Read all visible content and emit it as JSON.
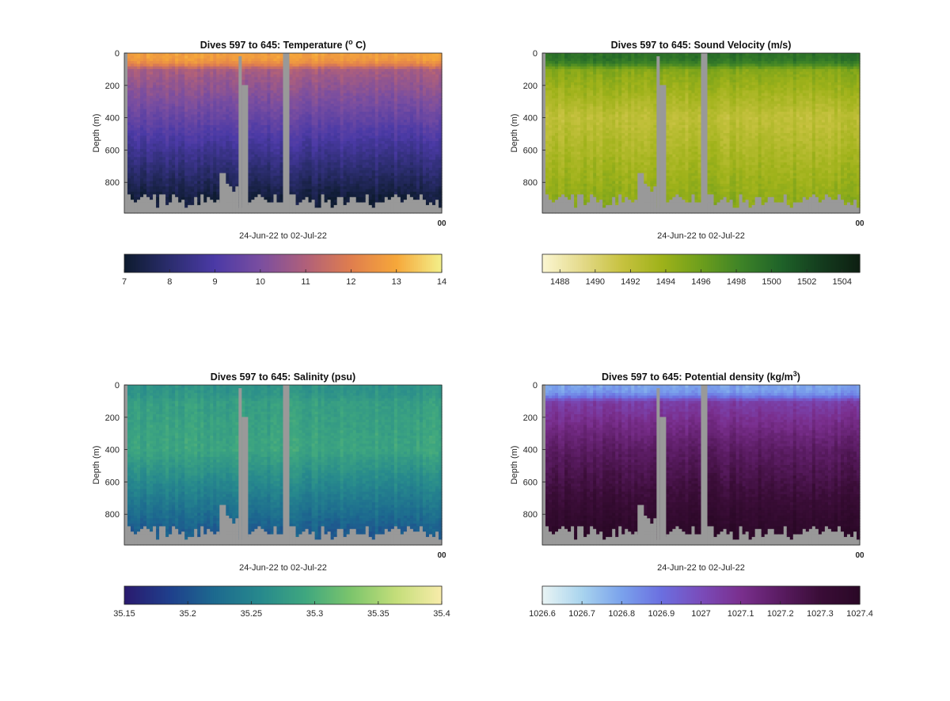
{
  "figure": {
    "date_range_label": "24-Jun-22 to 02-Jul-22",
    "ylabel": "Depth (m)",
    "x_tick_overlap_label": "00"
  },
  "chart_data": [
    {
      "type": "heatmap",
      "title": "Dives 597 to 645: Temperature (° C)",
      "title_prefix": "Dives 597 to 645: Temperature (",
      "title_sup": "o",
      "title_suffix": " C)",
      "xlabel": "24-Jun-22 to 02-Jul-22",
      "ylabel": "Depth (m)",
      "y_ticks": [
        0,
        200,
        400,
        600,
        800
      ],
      "ylim": [
        0,
        990
      ],
      "y_reversed": true,
      "colorbar": {
        "min": 7,
        "max": 14,
        "ticks": [
          7,
          8,
          9,
          10,
          11,
          12,
          13,
          14
        ],
        "tick_labels": [
          "7",
          "8",
          "9",
          "10",
          "11",
          "12",
          "13",
          "14"
        ],
        "colormap": [
          "#0d1b2e",
          "#2b2d6e",
          "#4b3aa6",
          "#7a4ea0",
          "#b0607a",
          "#e07e4e",
          "#f6a73a",
          "#f3f08a"
        ]
      },
      "profile": {
        "surface_value": 12.8,
        "surface_depth": 100,
        "mid_value": 9.6,
        "mid_depth": 400,
        "deep_value": 7.2,
        "deep_depth": 900
      }
    },
    {
      "type": "heatmap",
      "title": "Dives 597 to 645: Sound Velocity (m/s)",
      "title_prefix": "Dives 597 to 645: Sound Velocity (m/s)",
      "title_sup": "",
      "title_suffix": "",
      "xlabel": "24-Jun-22 to 02-Jul-22",
      "ylabel": "Depth (m)",
      "y_ticks": [
        0,
        200,
        400,
        600,
        800
      ],
      "ylim": [
        0,
        990
      ],
      "y_reversed": true,
      "colorbar": {
        "min": 1487,
        "max": 1505,
        "ticks": [
          1488,
          1490,
          1492,
          1494,
          1496,
          1498,
          1500,
          1502,
          1504
        ],
        "tick_labels": [
          "1488",
          "1490",
          "1492",
          "1494",
          "1496",
          "1498",
          "1500",
          "1502",
          "1504"
        ],
        "colormap": [
          "#fbf6d2",
          "#e4da8a",
          "#c7c240",
          "#9fb21a",
          "#6d9e1c",
          "#3e8327",
          "#1f6329",
          "#143d1e",
          "#0e1f12"
        ]
      },
      "profile": {
        "surface_value": 1499.5,
        "surface_depth": 100,
        "mid_value": 1492.0,
        "mid_depth": 400,
        "deep_value": 1494.5,
        "deep_depth": 900
      }
    },
    {
      "type": "heatmap",
      "title": "Dives 597 to 645: Salinity (psu)",
      "title_prefix": "Dives 597 to 645: Salinity (psu)",
      "title_sup": "",
      "title_suffix": "",
      "xlabel": "24-Jun-22 to 02-Jul-22",
      "ylabel": "Depth (m)",
      "y_ticks": [
        0,
        200,
        400,
        600,
        800
      ],
      "ylim": [
        0,
        990
      ],
      "y_reversed": true,
      "colorbar": {
        "min": 35.15,
        "max": 35.4,
        "ticks": [
          35.15,
          35.2,
          35.25,
          35.3,
          35.35,
          35.4
        ],
        "tick_labels": [
          "35.15",
          "35.2",
          "35.25",
          "35.3",
          "35.35",
          "35.4"
        ],
        "colormap": [
          "#2a1a6e",
          "#1f3f8c",
          "#1d6a8f",
          "#27898d",
          "#3fa77f",
          "#7cc56c",
          "#c4de7a",
          "#f8ecaa"
        ]
      },
      "profile": {
        "surface_value": 35.27,
        "surface_depth": 100,
        "mid_value": 35.29,
        "mid_depth": 400,
        "deep_value": 35.21,
        "deep_depth": 900
      }
    },
    {
      "type": "heatmap",
      "title": "Dives 597 to 645: Potential density (kg/m³)",
      "title_prefix": "Dives 597 to 645: Potential density (kg/m",
      "title_sup": "3",
      "title_suffix": ")",
      "xlabel": "24-Jun-22 to 02-Jul-22",
      "ylabel": "Depth (m)",
      "y_ticks": [
        0,
        200,
        400,
        600,
        800
      ],
      "ylim": [
        0,
        990
      ],
      "y_reversed": true,
      "colorbar": {
        "min": 1026.6,
        "max": 1027.4,
        "ticks": [
          1026.6,
          1026.7,
          1026.8,
          1026.9,
          1027,
          1027.1,
          1027.2,
          1027.3,
          1027.4
        ],
        "tick_labels": [
          "1026.6",
          "1026.7",
          "1026.8",
          "1026.9",
          "1027",
          "1027.1",
          "1027.2",
          "1027.3",
          "1027.4"
        ],
        "colormap": [
          "#e9f4f4",
          "#a9d4ee",
          "#7aa2ec",
          "#6b6fe0",
          "#7a4cba",
          "#7a2f8e",
          "#5a1c62",
          "#3a0d37",
          "#2a0826"
        ]
      },
      "profile": {
        "surface_value": 1026.8,
        "surface_depth": 100,
        "mid_value": 1027.2,
        "mid_depth": 400,
        "deep_value": 1027.38,
        "deep_depth": 900
      }
    }
  ]
}
